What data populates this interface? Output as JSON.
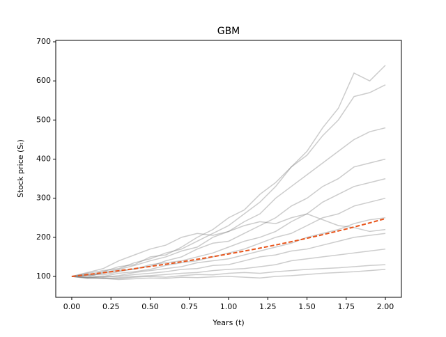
{
  "chart_data": {
    "type": "line",
    "title": "GBM",
    "x_label": "Years (t)",
    "y_label": "Stock price (Sₜ)",
    "x": [
      0,
      0.1,
      0.2,
      0.3,
      0.4,
      0.5,
      0.6,
      0.7,
      0.8,
      0.9,
      1.0,
      1.1,
      1.2,
      1.3,
      1.4,
      1.5,
      1.6,
      1.7,
      1.8,
      1.9,
      2.0
    ],
    "xlim": [
      -0.102,
      2.102
    ],
    "ylim": [
      46.6,
      703.6
    ],
    "xticks": [
      {
        "value": 0,
        "label": "0.00"
      },
      {
        "value": 0.25,
        "label": "0.25"
      },
      {
        "value": 0.5,
        "label": "0.50"
      },
      {
        "value": 0.75,
        "label": "0.75"
      },
      {
        "value": 1,
        "label": "1.00"
      },
      {
        "value": 1.25,
        "label": "1.25"
      },
      {
        "value": 1.5,
        "label": "1.50"
      },
      {
        "value": 1.75,
        "label": "1.75"
      },
      {
        "value": 2,
        "label": "2.00"
      }
    ],
    "yticks": [
      100,
      200,
      300,
      400,
      500,
      600,
      700
    ],
    "series": [
      {
        "color": "#808080",
        "values": [
          100,
          108,
          115,
          120,
          135,
          145,
          160,
          170,
          190,
          210,
          230,
          260,
          290,
          330,
          380,
          420,
          480,
          530,
          620,
          600,
          640
        ]
      },
      {
        "color": "#808080",
        "values": [
          100,
          104,
          112,
          125,
          130,
          150,
          155,
          175,
          200,
          220,
          250,
          270,
          310,
          340,
          380,
          410,
          460,
          500,
          560,
          570,
          590
        ]
      },
      {
        "color": "#808080",
        "values": [
          100,
          98,
          110,
          118,
          128,
          140,
          150,
          165,
          175,
          200,
          215,
          240,
          260,
          300,
          330,
          360,
          390,
          420,
          450,
          470,
          480
        ]
      },
      {
        "color": "#808080",
        "values": [
          100,
          106,
          104,
          112,
          120,
          126,
          140,
          150,
          170,
          185,
          190,
          210,
          230,
          250,
          280,
          300,
          330,
          350,
          380,
          390,
          400
        ]
      },
      {
        "color": "#808080",
        "values": [
          100,
          102,
          108,
          115,
          118,
          130,
          135,
          140,
          150,
          160,
          175,
          190,
          200,
          215,
          240,
          260,
          290,
          310,
          330,
          340,
          350
        ]
      },
      {
        "color": "#808080",
        "values": [
          100,
          97,
          100,
          108,
          112,
          118,
          128,
          135,
          140,
          150,
          160,
          170,
          185,
          200,
          210,
          230,
          250,
          260,
          280,
          290,
          300
        ]
      },
      {
        "color": "#808080",
        "values": [
          100,
          103,
          98,
          102,
          110,
          115,
          120,
          125,
          135,
          140,
          145,
          155,
          165,
          175,
          185,
          200,
          210,
          220,
          235,
          245,
          250
        ]
      },
      {
        "color": "#808080",
        "values": [
          100,
          96,
          99,
          100,
          105,
          108,
          112,
          118,
          120,
          128,
          130,
          140,
          150,
          155,
          165,
          170,
          180,
          190,
          200,
          205,
          210
        ]
      },
      {
        "color": "#808080",
        "values": [
          100,
          98,
          95,
          97,
          100,
          102,
          105,
          108,
          110,
          115,
          118,
          120,
          125,
          130,
          140,
          145,
          150,
          155,
          160,
          165,
          170
        ]
      },
      {
        "color": "#808080",
        "values": [
          100,
          95,
          96,
          94,
          98,
          100,
          98,
          102,
          105,
          104,
          108,
          110,
          108,
          112,
          115,
          118,
          120,
          122,
          125,
          128,
          130
        ]
      },
      {
        "color": "#808080",
        "values": [
          100,
          97,
          95,
          92,
          94,
          96,
          95,
          98,
          97,
          99,
          100,
          98,
          96,
          100,
          102,
          105,
          108,
          110,
          112,
          115,
          118
        ]
      },
      {
        "color": "#808080",
        "values": [
          100,
          110,
          120,
          140,
          155,
          170,
          180,
          200,
          210,
          205,
          215,
          230,
          240,
          235,
          250,
          260,
          245,
          230,
          225,
          215,
          220
        ]
      },
      {
        "color": "#e8541a",
        "dashed": true,
        "values": [
          100,
          104.6,
          109.5,
          114.6,
          119.9,
          125.5,
          131.3,
          137.4,
          143.8,
          150.5,
          157.5,
          164.8,
          172.4,
          180.4,
          188.8,
          197.6,
          206.7,
          216.3,
          226.4,
          236.9,
          247.9
        ]
      }
    ]
  }
}
